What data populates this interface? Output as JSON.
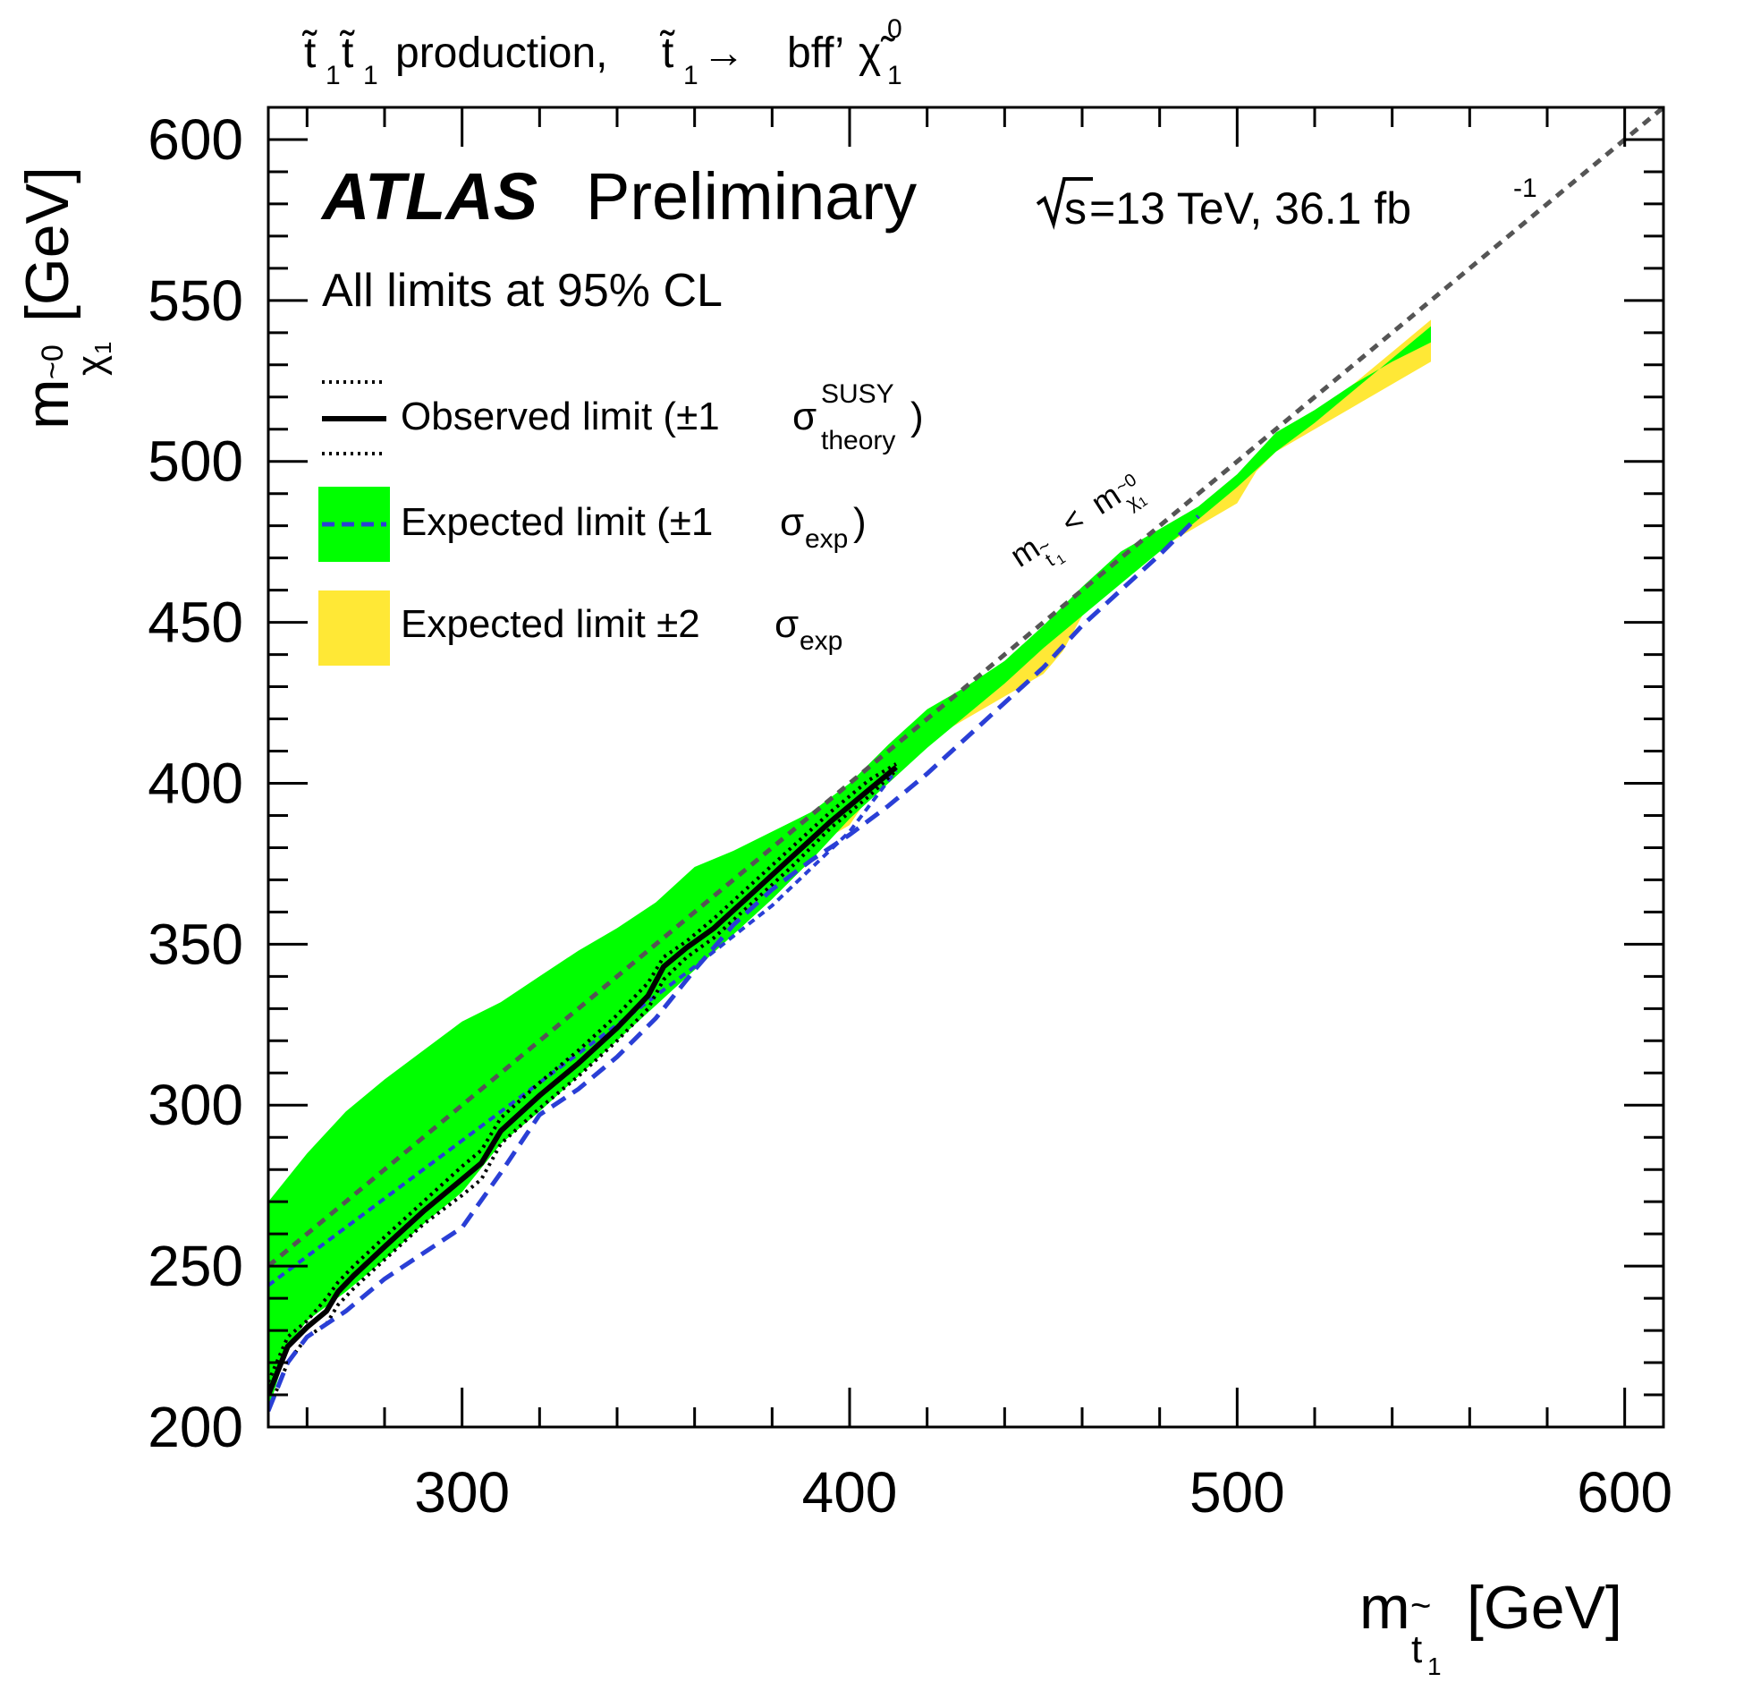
{
  "chart_data": {
    "type": "line",
    "title_process": "production,",
    "title_decay": "bff’",
    "atlas_label": "ATLAS",
    "status_label": "Preliminary",
    "energy_label": "=13 TeV, 36.1 fb",
    "energy_superscript": "-1",
    "cl_label": "All limits at 95% CL",
    "xlabel": "[GeV]",
    "ylabel": "[GeV]",
    "xlim": [
      250,
      610
    ],
    "ylim": [
      200,
      610
    ],
    "x_ticks": [
      300,
      400,
      500,
      600
    ],
    "y_ticks": [
      200,
      250,
      300,
      350,
      400,
      450,
      500,
      550,
      600
    ],
    "kinematic_label": "<",
    "legend": {
      "observed": "Observed limit (±1",
      "observed_sup": "SUSY",
      "observed_sub": "theory",
      "expected": "Expected limit (±1",
      "expected_sub": "exp",
      "expected2": "Expected limit ±2",
      "expected2_sub": "exp"
    },
    "colors": {
      "band_1sigma": "#00ff00",
      "band_2sigma": "#ffe836",
      "expected_line": "#2a3fd6",
      "observed_line": "#000000",
      "kinematic_line": "#555555"
    },
    "series": {
      "kinematic_limit": {
        "x": [
          250,
          610
        ],
        "y": [
          250,
          610
        ]
      },
      "band2_upper": {
        "x": [
          250,
          255,
          260,
          270,
          280,
          290,
          300,
          310,
          320,
          330,
          340,
          350,
          360,
          370,
          380,
          390,
          400,
          410,
          420,
          430,
          440,
          450,
          460,
          470,
          480,
          490,
          500,
          510,
          520,
          530,
          540,
          550
        ],
        "y": [
          219,
          231,
          237,
          245,
          256,
          267,
          277,
          292,
          301,
          312,
          323,
          334,
          345,
          356,
          367,
          379,
          392,
          403,
          413,
          423,
          433,
          444,
          454,
          464,
          474,
          484,
          494,
          505,
          514,
          524,
          534,
          544
        ]
      },
      "band2_lower": {
        "x": [
          550,
          540,
          530,
          520,
          510,
          505,
          500,
          490,
          480,
          470,
          465,
          460,
          455,
          450,
          440,
          430,
          420,
          410,
          405,
          400,
          390,
          380,
          375,
          370,
          365,
          360,
          355,
          350,
          345,
          340,
          330,
          320,
          310,
          300,
          290,
          280,
          275,
          270,
          265,
          260,
          255,
          250
        ],
        "y": [
          531,
          524,
          517,
          510,
          503,
          497,
          487,
          480,
          473,
          466,
          460,
          452,
          441,
          434,
          427,
          420,
          413,
          405,
          396,
          387,
          380,
          374,
          370,
          366,
          364,
          362,
          360,
          356,
          352,
          348,
          341,
          334,
          327,
          320,
          306,
          293,
          285,
          280,
          277,
          270,
          264,
          257
        ]
      },
      "band1_upper": {
        "x": [
          250,
          255,
          260,
          270,
          280,
          290,
          300,
          310,
          320,
          330,
          340,
          350,
          360,
          370,
          380,
          390,
          400,
          410,
          420,
          430,
          440,
          450,
          460,
          470,
          480,
          490,
          500,
          510,
          520,
          530,
          540,
          550
        ],
        "y": [
          205,
          225,
          233,
          242,
          252,
          263,
          273,
          288,
          298,
          309,
          320,
          331,
          342,
          353,
          364,
          376,
          389,
          400,
          411,
          421,
          431,
          442,
          452,
          462,
          472,
          482,
          492,
          503,
          512,
          522,
          532,
          542
        ]
      },
      "band1_lower": {
        "x": [
          550,
          540,
          530,
          520,
          510,
          500,
          490,
          480,
          470,
          460,
          450,
          440,
          430,
          420,
          410,
          400,
          390,
          380,
          370,
          360,
          350,
          340,
          330,
          320,
          310,
          300,
          290,
          280,
          270,
          260,
          250
        ],
        "y": [
          537,
          531,
          524,
          516,
          509,
          496,
          486,
          479,
          472,
          461,
          449,
          438,
          430,
          423,
          412,
          400,
          391,
          385,
          379,
          374,
          363,
          355,
          348,
          340,
          332,
          326,
          317,
          308,
          298,
          285,
          270
        ]
      },
      "expected": {
        "x": [
          250,
          255,
          260,
          270,
          280,
          290,
          300,
          310,
          320,
          330,
          340,
          350,
          360,
          370,
          380,
          390,
          400,
          410,
          420,
          430,
          440,
          450,
          460,
          470,
          480,
          490
        ],
        "y": [
          205,
          220,
          228,
          236,
          246,
          254,
          262,
          279,
          297,
          305,
          315,
          327,
          342,
          356,
          367,
          376,
          384,
          393,
          403,
          414,
          425,
          436,
          449,
          460,
          471,
          483
        ]
      },
      "observed": {
        "x": [
          250,
          255,
          260,
          265,
          268,
          272,
          280,
          290,
          300,
          305,
          310,
          320,
          330,
          340,
          348,
          352,
          358,
          365,
          375,
          385,
          395,
          405,
          412
        ],
        "y": [
          210,
          225,
          231,
          236,
          242,
          247,
          256,
          267,
          277,
          282,
          292,
          303,
          313,
          324,
          334,
          343,
          349,
          355,
          366,
          377,
          388,
          398,
          405
        ]
      },
      "observed_up": {
        "x": [
          250,
          255,
          260,
          265,
          268,
          272,
          280,
          290,
          300,
          305,
          310,
          320,
          330,
          340,
          348,
          352,
          358,
          365,
          375,
          385,
          395,
          405,
          412
        ],
        "y": [
          214,
          228,
          233,
          240,
          245,
          250,
          259,
          270,
          281,
          286,
          296,
          307,
          317,
          328,
          338,
          346,
          351,
          358,
          369,
          380,
          391,
          401,
          406
        ]
      },
      "observed_down": {
        "x": [
          250,
          255,
          260,
          265,
          268,
          272,
          280,
          290,
          300,
          305,
          310,
          320,
          330,
          340,
          348,
          352,
          358,
          365,
          375,
          385,
          395,
          405,
          412
        ],
        "y": [
          205,
          220,
          228,
          232,
          238,
          243,
          252,
          263,
          272,
          277,
          288,
          299,
          309,
          320,
          330,
          339,
          346,
          352,
          363,
          374,
          386,
          396,
          404
        ]
      },
      "upper_edge": {
        "x": [
          250,
          260,
          280,
          300,
          320,
          340,
          360,
          380,
          400,
          412
        ],
        "y": [
          244,
          253,
          271,
          289,
          307,
          325,
          343,
          362,
          385,
          404
        ]
      }
    }
  }
}
